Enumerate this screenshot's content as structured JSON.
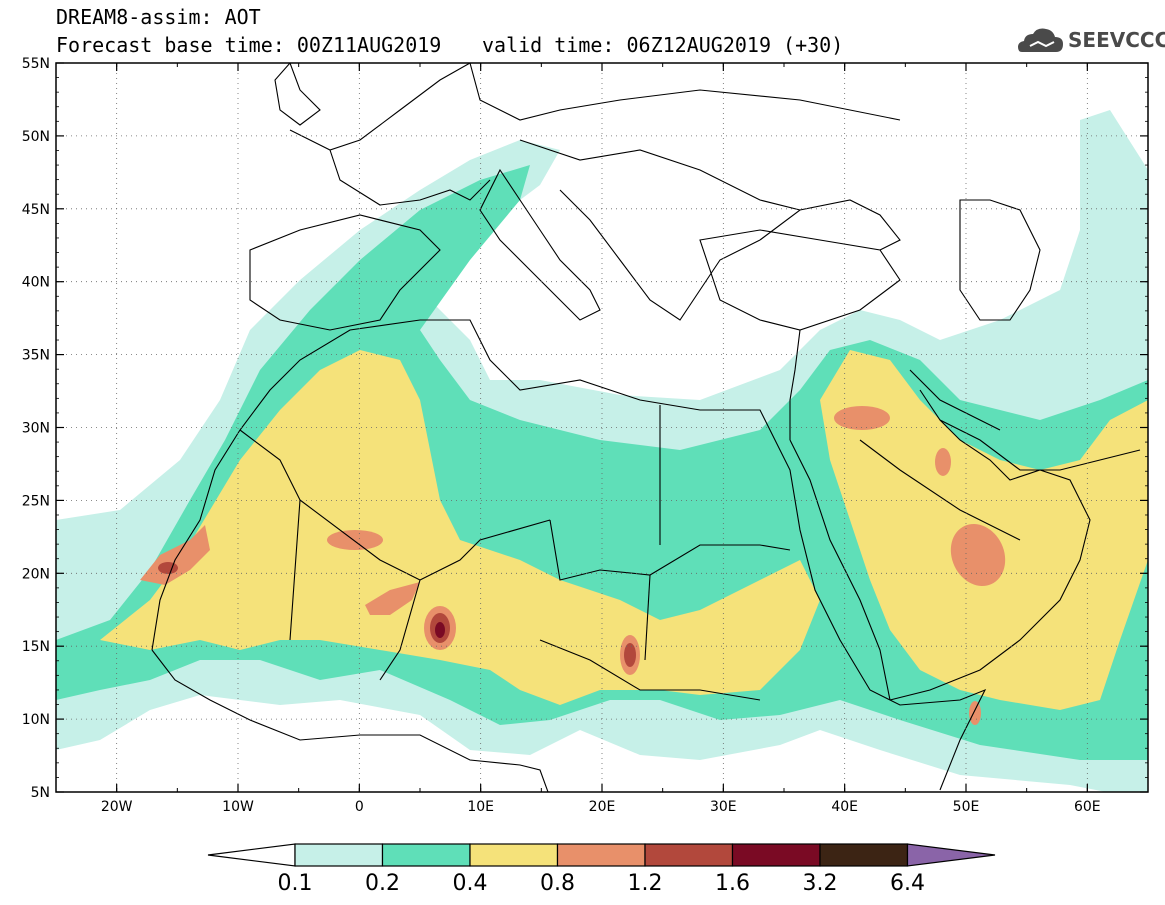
{
  "header": {
    "title_line1": "DREAM8-assim: AOT",
    "title_line2": "Forecast base time: 00Z11AUG2019",
    "valid_time": "valid time: 06Z12AUG2019 (+30)",
    "logo_text": "SEEVCCC"
  },
  "map": {
    "lat_labels": [
      "55N",
      "50N",
      "45N",
      "40N",
      "35N",
      "30N",
      "25N",
      "20N",
      "15N",
      "10N",
      "5N"
    ],
    "lon_labels": [
      "20W",
      "10W",
      "0",
      "10E",
      "20E",
      "30E",
      "40E",
      "50E",
      "60E"
    ],
    "lon_range": [
      -25,
      65
    ],
    "lat_range": [
      5,
      55
    ]
  },
  "colorbar": {
    "levels": [
      "0.1",
      "0.2",
      "0.4",
      "0.8",
      "1.2",
      "1.6",
      "3.2",
      "6.4"
    ],
    "colors": [
      "#c6f0e8",
      "#5fdfb8",
      "#f5e27a",
      "#e8906a",
      "#b2483c",
      "#7a0a24",
      "#3c2414",
      "#8a64a8"
    ],
    "under_color": "#ffffff",
    "over_color": "#8a64a8"
  },
  "colors": {
    "c01": "#c6f0e8",
    "c02": "#5fdfb8",
    "c04": "#f5e27a",
    "c08": "#e8906a",
    "c12": "#b2483c",
    "c16": "#7a0a24"
  }
}
